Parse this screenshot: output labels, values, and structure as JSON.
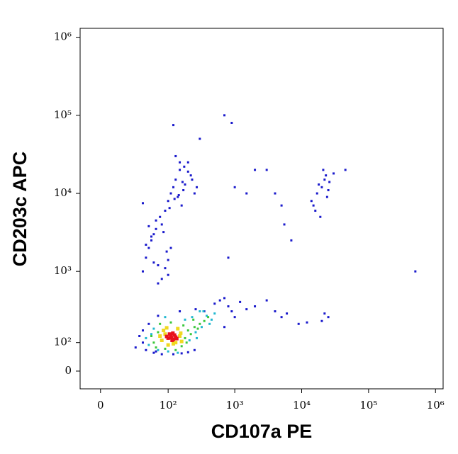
{
  "chart_data": {
    "type": "scatter",
    "scale": "biexponential",
    "x_label": "CD107a PE",
    "y_label": "CD203c APC",
    "xlim": [
      -15,
      1300000
    ],
    "ylim": [
      -58,
      1300000
    ],
    "xticks": [
      0,
      {
        "value": 100,
        "label": "10²"
      },
      {
        "value": 1000,
        "label": "10³"
      },
      {
        "value": 10000,
        "label": "10⁴"
      },
      {
        "value": 100000,
        "label": "10⁵"
      },
      {
        "value": 1000000,
        "label": "10⁶"
      }
    ],
    "yticks": [
      0,
      {
        "value": 100,
        "label": "10²"
      },
      {
        "value": 1000,
        "label": "10³"
      },
      {
        "value": 10000,
        "label": "10⁴"
      },
      {
        "value": 100000,
        "label": "10⁵"
      },
      {
        "value": 1000000,
        "label": "10⁶"
      }
    ],
    "series": [
      {
        "color": "#1a1acc",
        "x": [
          40,
          35,
          30,
          45,
          60,
          80,
          120,
          160,
          200,
          250,
          350,
          500,
          600,
          700,
          800,
          900,
          1200,
          1500,
          2000,
          3000,
          4000,
          5000,
          6000,
          9000,
          12000,
          20000,
          22000,
          25000,
          40,
          50,
          70,
          65,
          150,
          260,
          700,
          1000,
          40,
          45,
          50,
          55,
          60,
          65,
          70,
          75,
          80,
          90,
          100,
          110,
          120,
          130,
          140,
          150,
          160,
          170,
          180,
          200,
          220,
          250,
          45,
          55,
          65,
          85,
          95,
          105,
          125,
          145,
          165,
          60,
          70,
          80,
          90,
          100,
          110,
          50,
          40,
          130,
          150,
          175,
          200,
          230,
          270,
          300,
          120,
          100,
          15000,
          17000,
          20000,
          22000,
          25000,
          18000,
          21000,
          24000,
          16000,
          19000,
          23000,
          14000,
          26000,
          30000,
          45000,
          3000,
          4000,
          5000,
          7000,
          1000,
          2000,
          700,
          1500,
          500000,
          800,
          900,
          5500
        ],
        "y": [
          100,
          130,
          80,
          70,
          60,
          55,
          55,
          58,
          62,
          70,
          300,
          380,
          420,
          450,
          350,
          300,
          400,
          320,
          350,
          420,
          300,
          250,
          280,
          200,
          210,
          220,
          280,
          250,
          160,
          200,
          260,
          65,
          300,
          320,
          180,
          250,
          1000,
          1500,
          2000,
          2500,
          3000,
          3500,
          1200,
          5000,
          4000,
          6000,
          8000,
          10000,
          12000,
          15000,
          9000,
          20000,
          7000,
          11000,
          13000,
          25000,
          17000,
          10000,
          2200,
          2800,
          4500,
          3200,
          1800,
          6500,
          8500,
          9500,
          14000,
          1300,
          700,
          800,
          1100,
          1400,
          2000,
          3800,
          7500,
          30000,
          25000,
          22000,
          19000,
          15000,
          12000,
          50000,
          75000,
          900,
          7000,
          10000,
          12000,
          15000,
          11000,
          13000,
          20000,
          9000,
          6000,
          5000,
          17000,
          8000,
          14000,
          18000,
          20000,
          20000,
          10000,
          7000,
          2500,
          12000,
          20000,
          100000,
          10000,
          1000,
          1500,
          80000,
          4000
        ]
      },
      {
        "color": "#22b8d0",
        "x": [
          50,
          55,
          210,
          260,
          320,
          380,
          450,
          500,
          70,
          100,
          140,
          180,
          230,
          300,
          420,
          45,
          60,
          270,
          340,
          90
        ],
        "y": [
          90,
          140,
          110,
          150,
          180,
          260,
          230,
          280,
          70,
          65,
          60,
          230,
          250,
          300,
          200,
          120,
          170,
          120,
          300,
          250
        ]
      },
      {
        "color": "#3cc83c",
        "x": [
          60,
          70,
          180,
          200,
          250,
          300,
          65,
          90,
          130,
          170,
          220,
          280,
          350,
          400,
          75,
          110,
          160,
          55,
          190,
          240
        ],
        "y": [
          100,
          150,
          120,
          160,
          180,
          200,
          80,
          75,
          70,
          190,
          140,
          170,
          220,
          250,
          200,
          210,
          85,
          130,
          100,
          230
        ]
      },
      {
        "color": "#f0d820",
        "x": [
          80,
          90,
          150,
          160,
          85,
          140,
          100,
          120,
          95,
          155,
          130,
          75
        ],
        "y": [
          110,
          140,
          130,
          105,
          160,
          170,
          90,
          95,
          175,
          145,
          100,
          130
        ]
      },
      {
        "color": "#e8121a",
        "x": [
          100,
          110,
          120,
          130,
          105,
          115,
          125,
          95,
          135,
          112,
          118
        ],
        "y": [
          120,
          130,
          115,
          125,
          140,
          110,
          135,
          128,
          118,
          122,
          145
        ]
      }
    ]
  }
}
